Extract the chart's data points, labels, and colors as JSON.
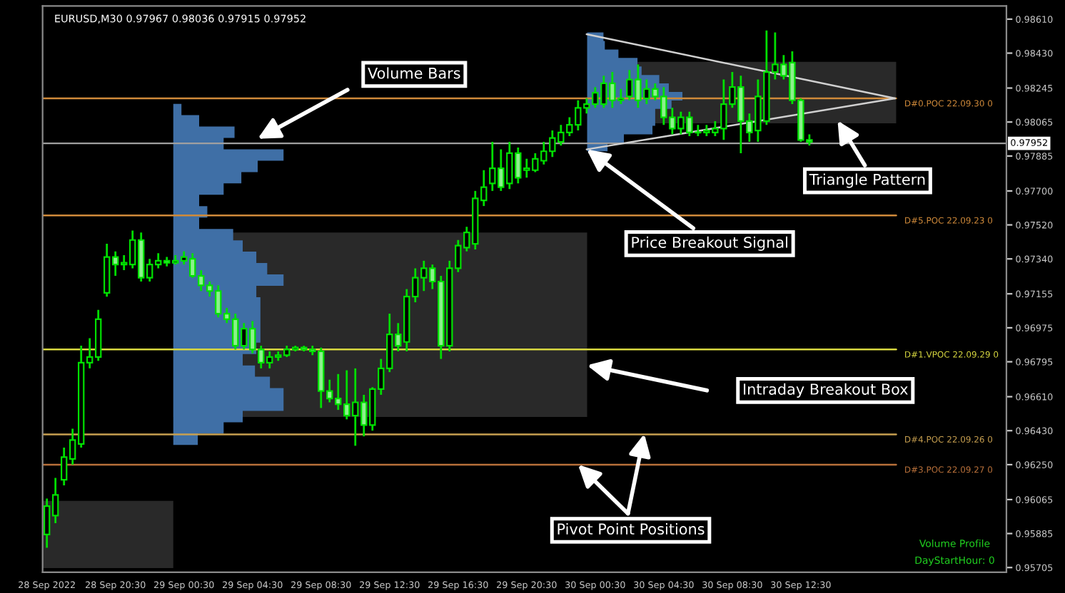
{
  "chart_data": [
    {
      "type": "candlestick",
      "title": "EURUSD,M30 0.97967 0.98036 0.97915 0.97952",
      "color": "#00e000",
      "x": [
        "2022-09-28T16:30",
        "2022-09-28T17:00",
        "2022-09-28T17:30",
        "2022-09-28T18:00",
        "2022-09-28T18:30",
        "2022-09-28T19:00",
        "2022-09-28T19:30",
        "2022-09-28T20:00",
        "2022-09-28T20:30",
        "2022-09-28T21:00",
        "2022-09-28T21:30",
        "2022-09-28T22:00",
        "2022-09-28T22:30",
        "2022-09-28T23:00",
        "2022-09-28T23:30",
        "2022-09-29T00:00",
        "2022-09-29T00:30",
        "2022-09-29T01:00",
        "2022-09-29T01:30",
        "2022-09-29T02:00",
        "2022-09-29T02:30",
        "2022-09-29T03:00",
        "2022-09-29T03:30",
        "2022-09-29T04:00",
        "2022-09-29T04:30",
        "2022-09-29T05:00",
        "2022-09-29T05:30",
        "2022-09-29T06:00",
        "2022-09-29T06:30",
        "2022-09-29T07:00",
        "2022-09-29T07:30",
        "2022-09-29T08:00",
        "2022-09-29T08:30",
        "2022-09-29T09:00",
        "2022-09-29T09:30",
        "2022-09-29T10:00",
        "2022-09-29T10:30",
        "2022-09-29T11:00",
        "2022-09-29T11:30",
        "2022-09-29T12:00",
        "2022-09-29T12:30",
        "2022-09-29T13:00",
        "2022-09-29T13:30",
        "2022-09-29T14:00",
        "2022-09-29T14:30",
        "2022-09-29T15:00",
        "2022-09-29T15:30",
        "2022-09-29T16:00",
        "2022-09-29T16:30",
        "2022-09-29T17:00",
        "2022-09-29T17:30",
        "2022-09-29T18:00",
        "2022-09-29T18:30",
        "2022-09-29T19:00",
        "2022-09-29T19:30",
        "2022-09-29T20:00",
        "2022-09-29T20:30",
        "2022-09-29T21:00",
        "2022-09-29T21:30",
        "2022-09-29T22:00",
        "2022-09-29T22:30",
        "2022-09-29T23:00",
        "2022-09-29T23:30",
        "2022-09-30T00:00",
        "2022-09-30T00:30",
        "2022-09-30T01:00",
        "2022-09-30T01:30",
        "2022-09-30T02:00",
        "2022-09-30T02:30",
        "2022-09-30T03:00",
        "2022-09-30T03:30",
        "2022-09-30T04:00",
        "2022-09-30T04:30",
        "2022-09-30T05:00",
        "2022-09-30T05:30",
        "2022-09-30T06:00",
        "2022-09-30T06:30",
        "2022-09-30T07:00",
        "2022-09-30T07:30",
        "2022-09-30T08:00",
        "2022-09-30T08:30",
        "2022-09-30T09:00",
        "2022-09-30T09:30",
        "2022-09-30T10:00",
        "2022-09-30T10:30",
        "2022-09-30T11:00",
        "2022-09-30T11:30",
        "2022-09-30T12:00",
        "2022-09-30T12:30",
        "2022-09-30T13:00"
      ],
      "ohlc": [
        [
          0.9588,
          0.9607,
          0.9581,
          0.9603
        ],
        [
          0.9598,
          0.9618,
          0.9594,
          0.9609
        ],
        [
          0.9617,
          0.9634,
          0.9614,
          0.9629
        ],
        [
          0.9628,
          0.9644,
          0.9625,
          0.9638
        ],
        [
          0.9636,
          0.9688,
          0.9634,
          0.9679
        ],
        [
          0.9679,
          0.9692,
          0.9676,
          0.9682
        ],
        [
          0.9682,
          0.9707,
          0.968,
          0.9702
        ],
        [
          0.9716,
          0.9742,
          0.9714,
          0.9735
        ],
        [
          0.9735,
          0.9738,
          0.9725,
          0.9731
        ],
        [
          0.9731,
          0.9736,
          0.9728,
          0.9732
        ],
        [
          0.9731,
          0.9749,
          0.9729,
          0.9744
        ],
        [
          0.9744,
          0.9748,
          0.9722,
          0.9724
        ],
        [
          0.9724,
          0.9734,
          0.9722,
          0.9731
        ],
        [
          0.9731,
          0.9737,
          0.9729,
          0.9733
        ],
        [
          0.9733,
          0.9735,
          0.973,
          0.9732
        ],
        [
          0.9732,
          0.9736,
          0.9731,
          0.9733
        ],
        [
          0.9733,
          0.9738,
          0.9731,
          0.9735
        ],
        [
          0.9734,
          0.9737,
          0.9724,
          0.9725
        ],
        [
          0.9725,
          0.9728,
          0.9717,
          0.972
        ],
        [
          0.972,
          0.9722,
          0.9714,
          0.9717
        ],
        [
          0.9717,
          0.972,
          0.9703,
          0.9705
        ],
        [
          0.9705,
          0.9708,
          0.97,
          0.9702
        ],
        [
          0.9702,
          0.9705,
          0.9686,
          0.9688
        ],
        [
          0.9688,
          0.97,
          0.9686,
          0.9697
        ],
        [
          0.9697,
          0.9701,
          0.9684,
          0.9686
        ],
        [
          0.9686,
          0.9688,
          0.9676,
          0.9679
        ],
        [
          0.9679,
          0.9685,
          0.9676,
          0.9682
        ],
        [
          0.9682,
          0.9685,
          0.968,
          0.9683
        ],
        [
          0.9683,
          0.9688,
          0.9682,
          0.9686
        ],
        [
          0.9686,
          0.9688,
          0.9685,
          0.9687
        ],
        [
          0.9687,
          0.9688,
          0.9685,
          0.9686
        ],
        [
          0.9686,
          0.9688,
          0.9683,
          0.9685
        ],
        [
          0.9685,
          0.9687,
          0.9655,
          0.9664
        ],
        [
          0.9664,
          0.967,
          0.9658,
          0.966
        ],
        [
          0.966,
          0.9673,
          0.9654,
          0.9657
        ],
        [
          0.9657,
          0.9675,
          0.9649,
          0.9651
        ],
        [
          0.9651,
          0.9676,
          0.9635,
          0.9658
        ],
        [
          0.9658,
          0.9662,
          0.964,
          0.9646
        ],
        [
          0.9646,
          0.9666,
          0.9643,
          0.9665
        ],
        [
          0.9665,
          0.9681,
          0.9662,
          0.9676
        ],
        [
          0.9676,
          0.9705,
          0.9674,
          0.9694
        ],
        [
          0.9694,
          0.97,
          0.9685,
          0.9688
        ],
        [
          0.969,
          0.9718,
          0.9685,
          0.9714
        ],
        [
          0.9714,
          0.9729,
          0.9711,
          0.9724
        ],
        [
          0.9724,
          0.9733,
          0.9717,
          0.9729
        ],
        [
          0.9729,
          0.9731,
          0.9718,
          0.9722
        ],
        [
          0.9722,
          0.9725,
          0.9681,
          0.9688
        ],
        [
          0.9688,
          0.9733,
          0.9685,
          0.9729
        ],
        [
          0.9729,
          0.9744,
          0.9727,
          0.9741
        ],
        [
          0.974,
          0.9751,
          0.9738,
          0.9748
        ],
        [
          0.9742,
          0.977,
          0.9739,
          0.9766
        ],
        [
          0.9765,
          0.9781,
          0.9762,
          0.9772
        ],
        [
          0.9774,
          0.9796,
          0.977,
          0.9782
        ],
        [
          0.9782,
          0.9792,
          0.977,
          0.9772
        ],
        [
          0.9774,
          0.9796,
          0.9771,
          0.979
        ],
        [
          0.979,
          0.9793,
          0.9774,
          0.9777
        ],
        [
          0.9781,
          0.9787,
          0.9777,
          0.9782
        ],
        [
          0.9781,
          0.979,
          0.978,
          0.9787
        ],
        [
          0.9786,
          0.9796,
          0.9784,
          0.9791
        ],
        [
          0.9791,
          0.9802,
          0.9788,
          0.9798
        ],
        [
          0.9796,
          0.9805,
          0.9794,
          0.9801
        ],
        [
          0.9801,
          0.9809,
          0.9799,
          0.9805
        ],
        [
          0.9805,
          0.9818,
          0.9802,
          0.9814
        ],
        [
          0.9814,
          0.9819,
          0.9811,
          0.9816
        ],
        [
          0.9816,
          0.9825,
          0.9814,
          0.9822
        ],
        [
          0.9816,
          0.9831,
          0.9814,
          0.9827
        ],
        [
          0.9827,
          0.9833,
          0.9814,
          0.9818
        ],
        [
          0.9818,
          0.9824,
          0.9816,
          0.9819
        ],
        [
          0.982,
          0.9834,
          0.9818,
          0.9829
        ],
        [
          0.9829,
          0.9837,
          0.9814,
          0.9818
        ],
        [
          0.9819,
          0.9829,
          0.9816,
          0.9824
        ],
        [
          0.9824,
          0.9827,
          0.9818,
          0.982
        ],
        [
          0.982,
          0.9825,
          0.9805,
          0.9809
        ],
        [
          0.9809,
          0.9814,
          0.98,
          0.9803
        ],
        [
          0.9803,
          0.9812,
          0.98,
          0.9809
        ],
        [
          0.9809,
          0.9812,
          0.9799,
          0.9801
        ],
        [
          0.9801,
          0.9805,
          0.9799,
          0.9801
        ],
        [
          0.9801,
          0.9805,
          0.9799,
          0.9802
        ],
        [
          0.9801,
          0.9807,
          0.9799,
          0.9803
        ],
        [
          0.9803,
          0.9829,
          0.9797,
          0.9816
        ],
        [
          0.9816,
          0.9833,
          0.9814,
          0.9825
        ],
        [
          0.9825,
          0.9831,
          0.979,
          0.9807
        ],
        [
          0.9807,
          0.9811,
          0.9796,
          0.9801
        ],
        [
          0.9802,
          0.9829,
          0.9796,
          0.982
        ],
        [
          0.9807,
          0.9855,
          0.9805,
          0.9833
        ],
        [
          0.9833,
          0.9854,
          0.9829,
          0.9837
        ],
        [
          0.9837,
          0.9842,
          0.9829,
          0.9831
        ],
        [
          0.9838,
          0.9844,
          0.9816,
          0.9818
        ],
        [
          0.9818,
          0.9819,
          0.9796,
          0.9797
        ],
        [
          0.9797,
          0.98,
          0.9794,
          0.9796
        ]
      ],
      "series": [
        {
          "type": "line",
          "x": [
            "2022-09-30T00:00",
            "2022-09-30T18:00"
          ],
          "values": [
            0.9853,
            0.9819
          ],
          "color": "#d0d0d0"
        },
        {
          "type": "line",
          "x": [
            "2022-09-30T00:00",
            "2022-09-30T18:00"
          ],
          "values": [
            0.9792,
            0.9819
          ],
          "color": "#d0d0d0"
        }
      ],
      "ref_lines": [
        {
          "axis": "y",
          "value": 0.97952,
          "label": "0.97952",
          "color": "#a0a0a0"
        },
        {
          "axis": "y",
          "value": 0.9819,
          "label": "D#0.POC 22.09.30 0",
          "color": "#d08a3a"
        },
        {
          "axis": "y",
          "value": 0.9757,
          "label": "D#5.POC 22.09.23 0",
          "color": "#d08a3a"
        },
        {
          "axis": "y",
          "value": 0.9686,
          "label": "D#1.VPOC 22.09.29 0",
          "color": "#d8d840"
        },
        {
          "axis": "y",
          "value": 0.9641,
          "label": "D#4.POC 22.09.26 0",
          "color": "#c8a050"
        },
        {
          "axis": "y",
          "value": 0.9625,
          "label": "D#3.POC 22.09.27 0",
          "color": "#b8703a"
        }
      ],
      "annotations": [
        "Volume Bars",
        "Triangle Pattern",
        {
          "text": "Price Breakout Signal",
          "x": "2022-09-30T00:00",
          "y": 0.9792
        },
        "Intraday Breakout Box",
        {
          "text": "Pivot Point Positions",
          "x": "2022-09-29T23:30",
          "y": 0.9625
        },
        "Volume Profile",
        "DayStartHour: 0"
      ],
      "xlim": [
        "2022-09-28T16:15",
        "2022-10-01T00:30"
      ],
      "xticks": [
        {
          "value": "2022-09-28T16:30",
          "label": "28 Sep 2022"
        },
        {
          "value": "2022-09-28T20:30",
          "label": "28 Sep 20:30"
        },
        {
          "value": "2022-09-29T00:30",
          "label": "29 Sep 00:30"
        },
        {
          "value": "2022-09-29T04:30",
          "label": "29 Sep 04:30"
        },
        {
          "value": "2022-09-29T08:30",
          "label": "29 Sep 08:30"
        },
        {
          "value": "2022-09-29T12:30",
          "label": "29 Sep 12:30"
        },
        {
          "value": "2022-09-29T16:30",
          "label": "29 Sep 16:30"
        },
        {
          "value": "2022-09-29T20:30",
          "label": "29 Sep 20:30"
        },
        {
          "value": "2022-09-30T00:30",
          "label": "30 Sep 00:30"
        },
        {
          "value": "2022-09-30T04:30",
          "label": "30 Sep 04:30"
        },
        {
          "value": "2022-09-30T08:30",
          "label": "30 Sep 08:30"
        },
        {
          "value": "2022-09-30T12:30",
          "label": "30 Sep 12:30"
        }
      ],
      "ylim": [
        0.9568,
        0.9868
      ],
      "yticks": [
        {
          "value": 0.9861,
          "label": "0.98610"
        },
        {
          "value": 0.9843,
          "label": "0.98430"
        },
        {
          "value": 0.98245,
          "label": "0.98245"
        },
        {
          "value": 0.98065,
          "label": "0.98065"
        },
        {
          "value": 0.97885,
          "label": "0.97885"
        },
        {
          "value": 0.977,
          "label": "0.97700"
        },
        {
          "value": 0.9752,
          "label": "0.97520"
        },
        {
          "value": 0.9734,
          "label": "0.97340"
        },
        {
          "value": 0.97155,
          "label": "0.97155"
        },
        {
          "value": 0.96975,
          "label": "0.96975"
        },
        {
          "value": 0.96795,
          "label": "0.96795"
        },
        {
          "value": 0.9661,
          "label": "0.96610"
        },
        {
          "value": 0.9643,
          "label": "0.96430"
        },
        {
          "value": 0.9625,
          "label": "0.96250"
        },
        {
          "value": 0.96065,
          "label": "0.96065"
        },
        {
          "value": 0.95885,
          "label": "0.95885"
        },
        {
          "value": 0.95705,
          "label": "0.95705"
        }
      ]
    }
  ]
}
